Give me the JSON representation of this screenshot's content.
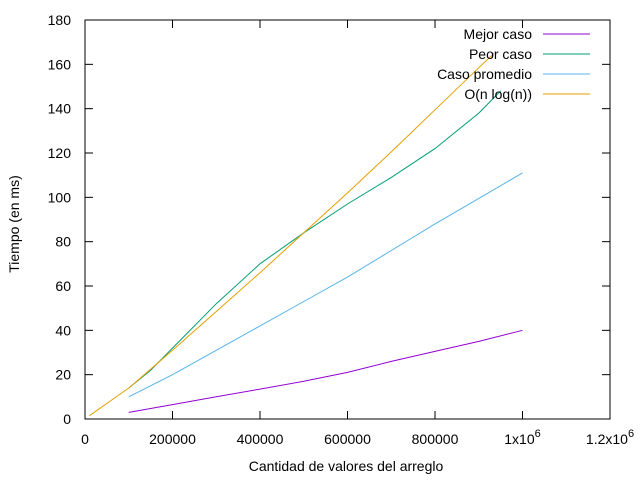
{
  "chart_data": {
    "type": "line",
    "title": "",
    "xlabel": "Cantidad de valores del arreglo",
    "ylabel": "Tiempo (en ms)",
    "xlim": [
      0,
      1200000
    ],
    "ylim": [
      0,
      180
    ],
    "xticks": [
      {
        "value": 0,
        "label": "0"
      },
      {
        "value": 200000,
        "label": "200000"
      },
      {
        "value": 400000,
        "label": "400000"
      },
      {
        "value": 600000,
        "label": "600000"
      },
      {
        "value": 800000,
        "label": "800000"
      }
    ],
    "xticks_sci": [
      {
        "value": 1000000,
        "base": "1x10",
        "exp": "6"
      },
      {
        "value": 1200000,
        "base": "1.2x10",
        "exp": "6"
      }
    ],
    "yticks": [
      {
        "value": 0,
        "label": "0"
      },
      {
        "value": 20,
        "label": "20"
      },
      {
        "value": 40,
        "label": "40"
      },
      {
        "value": 60,
        "label": "60"
      },
      {
        "value": 80,
        "label": "80"
      },
      {
        "value": 100,
        "label": "100"
      },
      {
        "value": 120,
        "label": "120"
      },
      {
        "value": 140,
        "label": "140"
      },
      {
        "value": 160,
        "label": "160"
      },
      {
        "value": 180,
        "label": "180"
      }
    ],
    "grid": false,
    "legend": "top-right",
    "series": [
      {
        "name": "Mejor caso",
        "color": "#9400d3",
        "x": [
          100000,
          200000,
          300000,
          400000,
          500000,
          600000,
          700000,
          800000,
          900000,
          1000000
        ],
        "y": [
          3,
          6.5,
          10,
          13.5,
          17,
          21,
          26,
          30.5,
          35,
          40
        ]
      },
      {
        "name": "Peor caso",
        "color": "#009e73",
        "x": [
          100000,
          150000,
          200000,
          300000,
          400000,
          500000,
          600000,
          700000,
          800000,
          900000,
          950000
        ],
        "y": [
          14,
          22,
          32,
          52,
          70,
          84,
          97,
          109,
          122,
          138,
          148
        ]
      },
      {
        "name": "Caso promedio",
        "color": "#56b4e9",
        "x": [
          100000,
          200000,
          300000,
          400000,
          500000,
          600000,
          700000,
          800000,
          900000,
          1000000
        ],
        "y": [
          10,
          20,
          31,
          42,
          53,
          64,
          76,
          88,
          99.5,
          111
        ]
      },
      {
        "name": "O(n log(n))",
        "color": "#e69f00",
        "x": [
          10000,
          100000,
          200000,
          300000,
          400000,
          500000,
          600000,
          700000,
          800000,
          900000,
          935000
        ],
        "y": [
          1.5,
          14,
          31,
          48.5,
          66,
          84,
          102,
          120.5,
          139.5,
          158.5,
          165
        ]
      }
    ]
  }
}
